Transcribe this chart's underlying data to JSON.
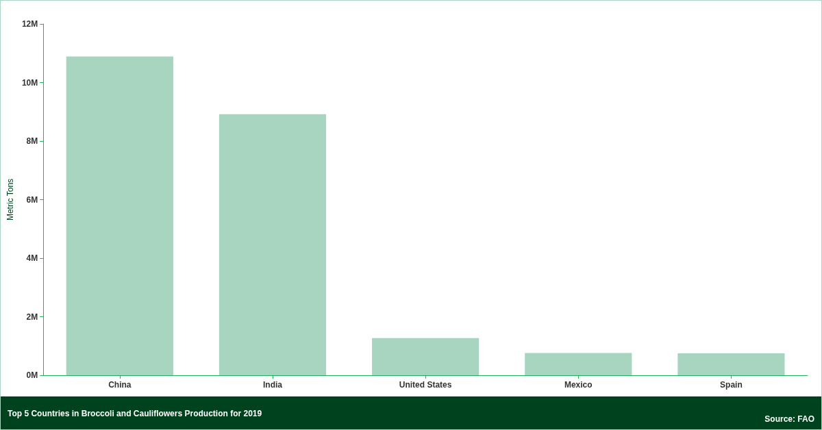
{
  "chart_data": {
    "type": "bar",
    "title": "Top 5 Countries in Broccoli and Cauliflowers Production for 2019",
    "ylabel": "Metric Tons",
    "annotations": [
      "Source:  FAO"
    ],
    "categories": [
      "China",
      "India",
      "United States",
      "Mexico",
      "Spain"
    ],
    "values": [
      10890000,
      8920000,
      1270000,
      760000,
      750000
    ],
    "color": "#a8d5c0",
    "ylim": [
      0,
      12000000
    ],
    "yticks": [
      {
        "value": 0,
        "label": "0M"
      },
      {
        "value": 2000000,
        "label": "2M"
      },
      {
        "value": 4000000,
        "label": "4M"
      },
      {
        "value": 6000000,
        "label": "6M"
      },
      {
        "value": 8000000,
        "label": "8M"
      },
      {
        "value": 10000000,
        "label": "10M"
      },
      {
        "value": 12000000,
        "label": "12M"
      }
    ],
    "grid": false
  }
}
